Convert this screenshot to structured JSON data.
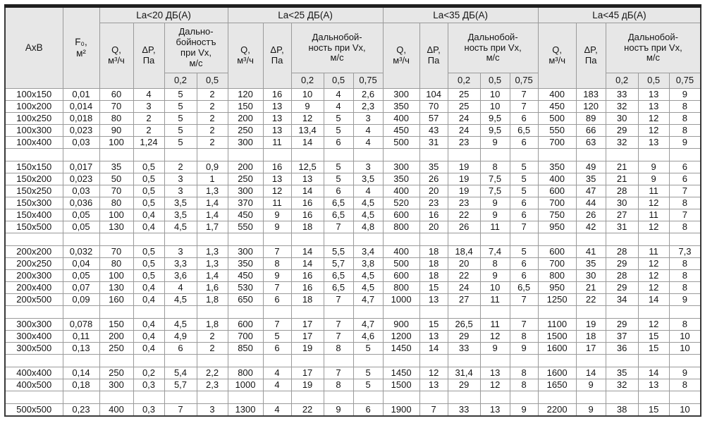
{
  "header": {
    "axb": "AxB",
    "f_label": "F₀,\nм²",
    "groups": [
      {
        "title": "La<20 ДБ(А)",
        "q": "Q,\nм³/ч",
        "dp": "ΔP,\nПа",
        "reach": "Дально-\nбойностъ\nпри Vx,\nм/с",
        "speeds": [
          "0,2",
          "0,5"
        ]
      },
      {
        "title": "La<25 ДБ(А)",
        "q": "Q,\nм³/ч",
        "dp": "ΔP,\nПа",
        "reach": "Дальнобой-\nность при Vx,\nм/с",
        "speeds": [
          "0,2",
          "0,5",
          "0,75"
        ]
      },
      {
        "title": "La<35 ДБ(А)",
        "q": "Q,\nм³/ч",
        "dp": "ΔP,\nПа",
        "reach": "Дальнобой-\nность при Vx,\nм/с",
        "speeds": [
          "0,2",
          "0,5",
          "0,75"
        ]
      },
      {
        "title": "La<45 дБ(А)",
        "q": "Q,\nм³/ч",
        "dp": "ΔP,\nПа",
        "reach": "Дальнобой-\nностъ при Vx,\nм/с",
        "speeds": [
          "0,2",
          "0,5",
          "0,75"
        ]
      }
    ]
  },
  "table": {
    "row_blocks": [
      {
        "rows": [
          [
            "100x150",
            "0,01",
            "60",
            "4",
            "5",
            "2",
            "120",
            "16",
            "10",
            "4",
            "2,6",
            "300",
            "104",
            "25",
            "10",
            "7",
            "400",
            "183",
            "33",
            "13",
            "9"
          ],
          [
            "100x200",
            "0,014",
            "70",
            "3",
            "5",
            "2",
            "150",
            "13",
            "9",
            "4",
            "2,3",
            "350",
            "70",
            "25",
            "10",
            "7",
            "450",
            "120",
            "32",
            "13",
            "8"
          ],
          [
            "100x250",
            "0,018",
            "80",
            "2",
            "5",
            "2",
            "200",
            "13",
            "12",
            "5",
            "3",
            "400",
            "57",
            "24",
            "9,5",
            "6",
            "500",
            "89",
            "30",
            "12",
            "8"
          ],
          [
            "100x300",
            "0,023",
            "90",
            "2",
            "5",
            "2",
            "250",
            "13",
            "13,4",
            "5",
            "4",
            "450",
            "43",
            "24",
            "9,5",
            "6,5",
            "550",
            "66",
            "29",
            "12",
            "8"
          ],
          [
            "100x400",
            "0,03",
            "100",
            "1,24",
            "5",
            "2",
            "300",
            "11",
            "14",
            "6",
            "4",
            "500",
            "31",
            "23",
            "9",
            "6",
            "700",
            "63",
            "32",
            "13",
            "9"
          ]
        ]
      },
      {
        "rows": [
          [
            "150x150",
            "0,017",
            "35",
            "0,5",
            "2",
            "0,9",
            "200",
            "16",
            "12,5",
            "5",
            "3",
            "300",
            "35",
            "19",
            "8",
            "5",
            "350",
            "49",
            "21",
            "9",
            "6"
          ],
          [
            "150x200",
            "0,023",
            "50",
            "0,5",
            "3",
            "1",
            "250",
            "13",
            "13",
            "5",
            "3,5",
            "350",
            "26",
            "19",
            "7,5",
            "5",
            "400",
            "35",
            "21",
            "9",
            "6"
          ],
          [
            "150x250",
            "0,03",
            "70",
            "0,5",
            "3",
            "1,3",
            "300",
            "12",
            "14",
            "6",
            "4",
            "400",
            "20",
            "19",
            "7,5",
            "5",
            "600",
            "47",
            "28",
            "11",
            "7"
          ],
          [
            "150x300",
            "0,036",
            "80",
            "0,5",
            "3,5",
            "1,4",
            "370",
            "11",
            "16",
            "6,5",
            "4,5",
            "520",
            "23",
            "23",
            "9",
            "6",
            "700",
            "44",
            "30",
            "12",
            "8"
          ],
          [
            "150x400",
            "0,05",
            "100",
            "0,4",
            "3,5",
            "1,4",
            "450",
            "9",
            "16",
            "6,5",
            "4,5",
            "600",
            "16",
            "22",
            "9",
            "6",
            "750",
            "26",
            "27",
            "11",
            "7"
          ],
          [
            "150x500",
            "0,05",
            "130",
            "0,4",
            "4,5",
            "1,7",
            "550",
            "9",
            "18",
            "7",
            "4,8",
            "800",
            "20",
            "26",
            "11",
            "7",
            "950",
            "42",
            "31",
            "12",
            "8"
          ]
        ]
      },
      {
        "rows": [
          [
            "200x200",
            "0,032",
            "70",
            "0,5",
            "3",
            "1,3",
            "300",
            "7",
            "14",
            "5,5",
            "3,4",
            "400",
            "18",
            "18,4",
            "7,4",
            "5",
            "600",
            "41",
            "28",
            "11",
            "7,3"
          ],
          [
            "200x250",
            "0,04",
            "80",
            "0,5",
            "3,3",
            "1,3",
            "350",
            "8",
            "14",
            "5,7",
            "3,8",
            "500",
            "18",
            "20",
            "8",
            "6",
            "700",
            "35",
            "29",
            "12",
            "8"
          ],
          [
            "200x300",
            "0,05",
            "100",
            "0,5",
            "3,6",
            "1,4",
            "450",
            "9",
            "16",
            "6,5",
            "4,5",
            "600",
            "18",
            "22",
            "9",
            "6",
            "800",
            "30",
            "28",
            "12",
            "8"
          ],
          [
            "200x400",
            "0,07",
            "130",
            "0,4",
            "4",
            "1,6",
            "530",
            "7",
            "16",
            "6,5",
            "4,5",
            "800",
            "15",
            "24",
            "10",
            "6,5",
            "950",
            "21",
            "29",
            "12",
            "8"
          ],
          [
            "200x500",
            "0,09",
            "160",
            "0,4",
            "4,5",
            "1,8",
            "650",
            "6",
            "18",
            "7",
            "4,7",
            "1000",
            "13",
            "27",
            "11",
            "7",
            "1250",
            "22",
            "34",
            "14",
            "9"
          ]
        ]
      },
      {
        "rows": [
          [
            "300x300",
            "0,078",
            "150",
            "0,4",
            "4,5",
            "1,8",
            "600",
            "7",
            "17",
            "7",
            "4,7",
            "900",
            "15",
            "26,5",
            "11",
            "7",
            "1100",
            "19",
            "29",
            "12",
            "8"
          ],
          [
            "300x400",
            "0,11",
            "200",
            "0,4",
            "4,9",
            "2",
            "700",
            "5",
            "17",
            "7",
            "4,6",
            "1200",
            "13",
            "29",
            "12",
            "8",
            "1500",
            "18",
            "37",
            "15",
            "10"
          ],
          [
            "300x500",
            "0,13",
            "250",
            "0,4",
            "6",
            "2",
            "850",
            "6",
            "19",
            "8",
            "5",
            "1450",
            "14",
            "33",
            "9",
            "9",
            "1600",
            "17",
            "36",
            "15",
            "10"
          ]
        ]
      },
      {
        "rows": [
          [
            "400x400",
            "0,14",
            "250",
            "0,2",
            "5,4",
            "2,2",
            "800",
            "4",
            "17",
            "7",
            "5",
            "1450",
            "12",
            "31,4",
            "13",
            "8",
            "1600",
            "14",
            "35",
            "14",
            "9"
          ],
          [
            "400x500",
            "0,18",
            "300",
            "0,3",
            "5,7",
            "2,3",
            "1000",
            "4",
            "19",
            "8",
            "5",
            "1500",
            "13",
            "29",
            "12",
            "8",
            "1650",
            "9",
            "32",
            "13",
            "8"
          ]
        ]
      },
      {
        "rows": [
          [
            "500x500",
            "0,23",
            "400",
            "0,3",
            "7",
            "3",
            "1300",
            "4",
            "22",
            "9",
            "6",
            "1900",
            "7",
            "33",
            "13",
            "9",
            "2200",
            "9",
            "38",
            "15",
            "10"
          ]
        ]
      }
    ]
  }
}
